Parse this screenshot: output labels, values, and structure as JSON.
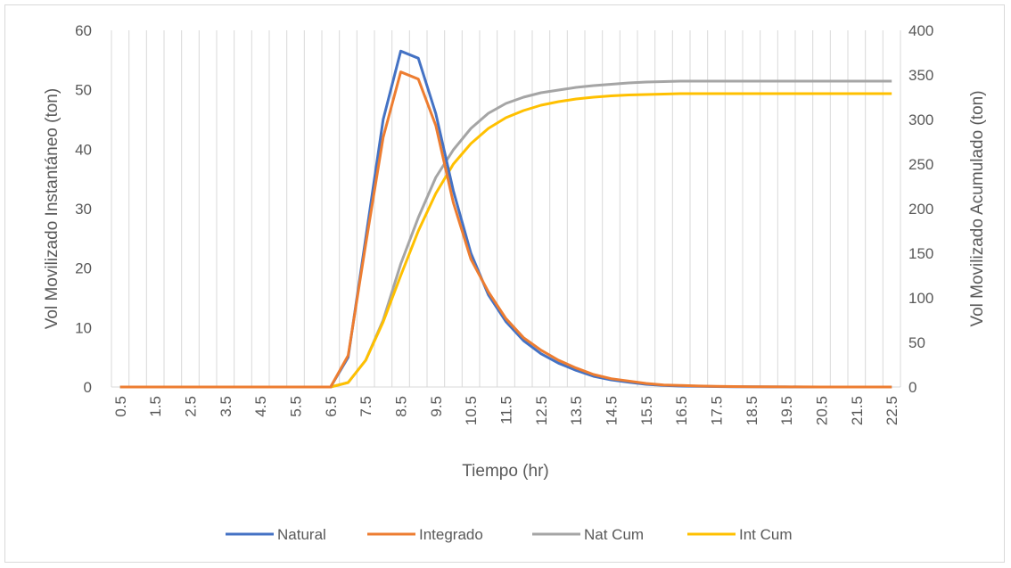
{
  "chart_data": {
    "type": "line",
    "title": "",
    "xlabel": "Tiempo (hr)",
    "ylabel": "Vol Movilizado Instantáneo (ton)",
    "y2label": "Vol Movilizado Acumulado (ton)",
    "x": [
      0.5,
      1,
      1.5,
      2,
      2.5,
      3,
      3.5,
      4,
      4.5,
      5,
      5.5,
      6,
      6.5,
      7,
      7.5,
      8,
      8.5,
      9,
      9.5,
      10,
      10.5,
      11,
      11.5,
      12,
      12.5,
      13,
      13.5,
      14,
      14.5,
      15,
      15.5,
      16,
      16.5,
      17,
      17.5,
      18,
      18.5,
      19,
      19.5,
      20,
      20.5,
      21,
      21.5,
      22,
      22.5
    ],
    "x_tick_labels": [
      "0.5",
      "1.5",
      "2.5",
      "3.5",
      "4.5",
      "5.5",
      "6.5",
      "7.5",
      "8.5",
      "9.5",
      "10.5",
      "11.5",
      "12.5",
      "13.5",
      "14.5",
      "15.5",
      "16.5",
      "17.5",
      "18.5",
      "19.5",
      "20.5",
      "21.5",
      "22.5"
    ],
    "ylim": [
      0,
      60
    ],
    "y_ticks": [
      0,
      10,
      20,
      30,
      40,
      50,
      60
    ],
    "y2lim": [
      0,
      400
    ],
    "y2_ticks": [
      0,
      50,
      100,
      150,
      200,
      250,
      300,
      350,
      400
    ],
    "grid": "vertical",
    "legend_position": "bottom",
    "series": [
      {
        "name": "Natural",
        "axis": "left",
        "color": "#4472C4",
        "values": [
          0,
          0,
          0,
          0,
          0,
          0,
          0,
          0,
          0,
          0,
          0,
          0,
          0,
          5,
          25,
          45,
          56.5,
          55.3,
          46,
          33,
          22.5,
          15.5,
          11,
          7.8,
          5.6,
          4,
          2.8,
          1.8,
          1.2,
          0.8,
          0.45,
          0.25,
          0.15,
          0.1,
          0.07,
          0.05,
          0.03,
          0.02,
          0.01,
          0,
          0,
          0,
          0,
          0,
          0
        ]
      },
      {
        "name": "Integrado",
        "axis": "left",
        "color": "#ED7D31",
        "values": [
          0,
          0,
          0,
          0,
          0,
          0,
          0,
          0,
          0,
          0,
          0,
          0,
          0,
          5.3,
          24,
          42,
          53,
          51.8,
          44,
          31,
          21.5,
          16,
          11.5,
          8.3,
          6.2,
          4.5,
          3.2,
          2.1,
          1.4,
          1,
          0.6,
          0.35,
          0.25,
          0.17,
          0.1,
          0.07,
          0.05,
          0.03,
          0.02,
          0.01,
          0,
          0,
          0,
          0,
          0
        ]
      },
      {
        "name": "Nat Cum",
        "axis": "right",
        "color": "#A5A5A5",
        "values": [
          0,
          0,
          0,
          0,
          0,
          0,
          0,
          0,
          0,
          0,
          0,
          0,
          0,
          5,
          30,
          75,
          138,
          190,
          235,
          266,
          290,
          307,
          318,
          325,
          330,
          333,
          336,
          338,
          339.5,
          341,
          342,
          342.5,
          343,
          343,
          343,
          343,
          343,
          343,
          343,
          343,
          343,
          343,
          343,
          343,
          343
        ]
      },
      {
        "name": "Int Cum",
        "axis": "right",
        "color": "#FFC000",
        "values": [
          0,
          0,
          0,
          0,
          0,
          0,
          0,
          0,
          0,
          0,
          0,
          0,
          0,
          5,
          30,
          73,
          125,
          175,
          217,
          250,
          273,
          290,
          302,
          310,
          316,
          320,
          323,
          325,
          326.5,
          327.5,
          328,
          328.5,
          329,
          329,
          329,
          329,
          329,
          329,
          329,
          329,
          329,
          329,
          329,
          329,
          329
        ]
      }
    ]
  }
}
